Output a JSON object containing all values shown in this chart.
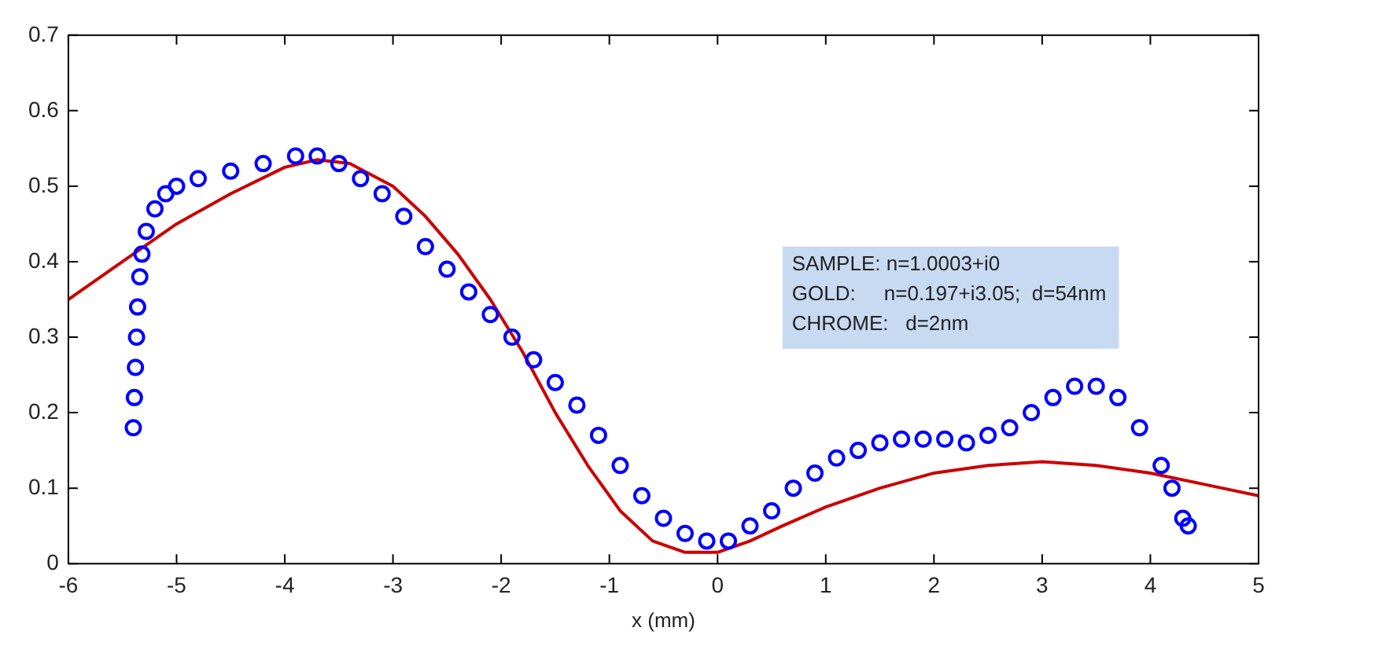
{
  "chart_data": {
    "type": "scatter",
    "xlabel": "x (mm)",
    "xlim": [
      -6,
      5
    ],
    "xticks": [
      -6,
      -5,
      -4,
      -3,
      -2,
      -1,
      0,
      1,
      2,
      3,
      4,
      5
    ],
    "ylim": [
      0,
      0.7
    ],
    "yticks": [
      0,
      0.1,
      0.2,
      0.3,
      0.4,
      0.5,
      0.6,
      0.7
    ],
    "grid": false,
    "legend": false,
    "annotations": [
      "SAMPLE: n=1.0003+i0",
      "GOLD:     n=0.197+i3.05;  d=54nm",
      "CHROME:   d=2nm"
    ],
    "series": [
      {
        "color": "#0000ff",
        "marker": "circle",
        "x": [
          -5.4,
          -5.39,
          -5.38,
          -5.37,
          -5.36,
          -5.34,
          -5.32,
          -5.28,
          -5.2,
          -5.1,
          -5.0,
          -4.8,
          -4.5,
          -4.2,
          -3.9,
          -3.7,
          -3.5,
          -3.3,
          -3.1,
          -2.9,
          -2.7,
          -2.5,
          -2.3,
          -2.1,
          -1.9,
          -1.7,
          -1.5,
          -1.3,
          -1.1,
          -0.9,
          -0.7,
          -0.5,
          -0.3,
          -0.1,
          0.1,
          0.3,
          0.5,
          0.7,
          0.9,
          1.1,
          1.3,
          1.5,
          1.7,
          1.9,
          2.1,
          2.3,
          2.5,
          2.7,
          2.9,
          3.1,
          3.3,
          3.5,
          3.7,
          3.9,
          4.1,
          4.2,
          4.3,
          4.35
        ],
        "values": [
          0.18,
          0.22,
          0.26,
          0.3,
          0.34,
          0.38,
          0.41,
          0.44,
          0.47,
          0.49,
          0.5,
          0.51,
          0.52,
          0.53,
          0.54,
          0.54,
          0.53,
          0.51,
          0.49,
          0.46,
          0.42,
          0.39,
          0.36,
          0.33,
          0.3,
          0.27,
          0.24,
          0.21,
          0.17,
          0.13,
          0.09,
          0.06,
          0.04,
          0.03,
          0.03,
          0.05,
          0.07,
          0.1,
          0.12,
          0.14,
          0.15,
          0.16,
          0.165,
          0.165,
          0.165,
          0.16,
          0.17,
          0.18,
          0.2,
          0.22,
          0.235,
          0.235,
          0.22,
          0.18,
          0.13,
          0.1,
          0.06,
          0.05
        ]
      },
      {
        "type": "line",
        "color": "#cc0000",
        "marker": "none",
        "line_style": "solid",
        "x": [
          -6,
          -5.5,
          -5,
          -4.5,
          -4,
          -3.7,
          -3.4,
          -3,
          -2.7,
          -2.4,
          -2.1,
          -1.8,
          -1.5,
          -1.2,
          -0.9,
          -0.6,
          -0.3,
          0,
          0.3,
          0.6,
          1,
          1.5,
          2,
          2.5,
          3,
          3.5,
          4,
          4.5,
          5
        ],
        "values": [
          0.35,
          0.4,
          0.45,
          0.49,
          0.525,
          0.535,
          0.53,
          0.5,
          0.46,
          0.41,
          0.35,
          0.28,
          0.2,
          0.13,
          0.07,
          0.03,
          0.015,
          0.015,
          0.03,
          0.05,
          0.075,
          0.1,
          0.12,
          0.13,
          0.135,
          0.13,
          0.12,
          0.105,
          0.09
        ]
      }
    ]
  }
}
